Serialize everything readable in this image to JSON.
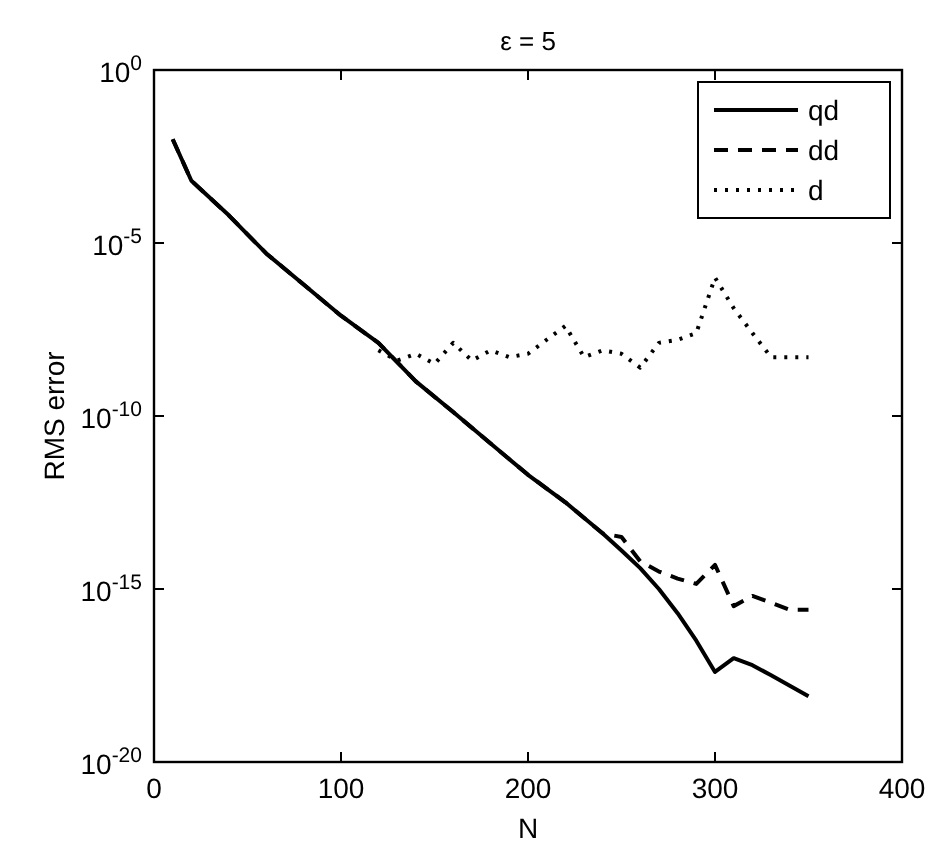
{
  "chart_data": {
    "type": "line",
    "title": "ε = 5",
    "xlabel": "N",
    "ylabel": "RMS error",
    "log": "y",
    "xlim": [
      0,
      400
    ],
    "xticks": [
      0,
      100,
      200,
      300,
      400
    ],
    "ylim": [
      1e-20,
      1
    ],
    "yticks": [
      {
        "value": 1e-20,
        "label": "10$^{-20}$"
      },
      {
        "value": 1e-15,
        "label": "10$^{-15}$"
      },
      {
        "value": 1e-10,
        "label": "10$^{-10}$"
      },
      {
        "value": 1e-05,
        "label": "10$^{-5}$"
      },
      {
        "value": 1,
        "label": "10$^{0}$"
      }
    ],
    "legend": "top right",
    "grid": false,
    "series": [
      {
        "name": "qd",
        "color": "#000000",
        "line_style": "solid",
        "x": [
          10,
          20,
          40,
          60,
          80,
          100,
          120,
          140,
          160,
          180,
          200,
          220,
          240,
          250,
          260,
          270,
          280,
          290,
          300,
          310,
          320,
          330,
          340,
          350
        ],
        "values": [
          0.01,
          0.00063,
          6.3e-05,
          5e-06,
          6.3e-07,
          7.9e-08,
          1.3e-08,
          1e-09,
          1.3e-10,
          1.6e-11,
          2e-12,
          3.2e-13,
          4e-14,
          1.3e-14,
          4e-15,
          1e-15,
          2e-16,
          3.2e-17,
          4e-18,
          1e-17,
          6.3e-18,
          3.2e-18,
          1.6e-18,
          7.9e-19
        ]
      },
      {
        "name": "dd",
        "color": "#000000",
        "line_style": "dashed",
        "x": [
          10,
          20,
          40,
          60,
          80,
          100,
          120,
          140,
          160,
          180,
          200,
          220,
          240,
          250,
          260,
          270,
          280,
          290,
          300,
          310,
          320,
          330,
          340,
          350
        ],
        "values": [
          0.01,
          0.00063,
          6.3e-05,
          5e-06,
          6.3e-07,
          7.9e-08,
          1.3e-08,
          1e-09,
          1.3e-10,
          1.6e-11,
          2e-12,
          3.2e-13,
          4e-14,
          3.2e-14,
          6.3e-15,
          3.2e-15,
          2e-15,
          1.4e-15,
          5e-15,
          3.2e-16,
          6.3e-16,
          4e-16,
          2.5e-16,
          2.5e-16
        ]
      },
      {
        "name": "d",
        "color": "#000000",
        "line_style": "dotted",
        "x": [
          120,
          130,
          140,
          150,
          160,
          170,
          180,
          190,
          200,
          210,
          220,
          230,
          240,
          250,
          260,
          270,
          280,
          290,
          300,
          310,
          320,
          330,
          340,
          350
        ],
        "values": [
          7.9e-09,
          4e-09,
          6.3e-09,
          3.2e-09,
          1.3e-08,
          4e-09,
          7.9e-09,
          5e-09,
          6.3e-09,
          1.6e-08,
          4e-08,
          5e-09,
          7.9e-09,
          6.3e-09,
          2.5e-09,
          1.3e-08,
          1.6e-08,
          2.5e-08,
          1e-06,
          1.3e-07,
          2.5e-08,
          5e-09,
          5e-09,
          5e-09
        ]
      }
    ]
  }
}
